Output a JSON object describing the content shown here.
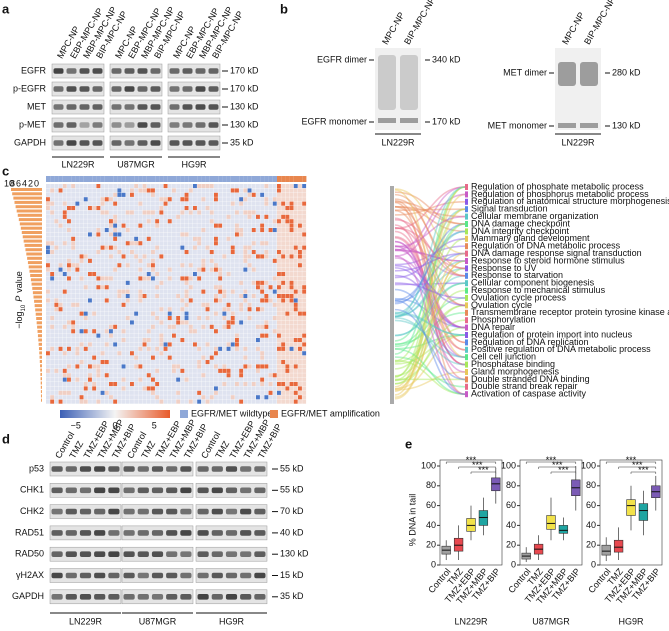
{
  "panels": {
    "a": {
      "label": "a",
      "columns": [
        "MPC-NP",
        "EBP-MPC-NP",
        "MBP-MPC-NP",
        "BIP-MPC-NP",
        "MPC-NP",
        "EBP-MPC-NP",
        "MBP-MPC-NP",
        "BIP-MPC-NP",
        "MPC-NP",
        "EBP-MPC-NP",
        "MBP-MPC-NP",
        "BIP-MPC-NP"
      ],
      "rows": [
        {
          "name": "EGFR",
          "size": "170 kD"
        },
        {
          "name": "p-EGFR",
          "size": "170 kD"
        },
        {
          "name": "MET",
          "size": "130 kD"
        },
        {
          "name": "p-MET",
          "size": "130 kD"
        },
        {
          "name": "GAPDH",
          "size": "35 kD"
        }
      ],
      "groups": [
        "LN229R",
        "U87MGR",
        "HG9R"
      ]
    },
    "b": {
      "label": "b",
      "blots": [
        {
          "columns": [
            "MPC-NP",
            "BIP-MPC-NP"
          ],
          "upper": "EGFR dimer",
          "lower": "EGFR monomer",
          "sizes": [
            "340 kD",
            "170 kD"
          ],
          "group": "LN229R"
        },
        {
          "columns": [
            "MPC-NP",
            "BIP-MPC-NP"
          ],
          "upper": "MET dimer",
          "lower": "MET monomer",
          "sizes": [
            "280 kD",
            "130 kD"
          ],
          "group": "LN229R"
        }
      ]
    },
    "c": {
      "label": "c",
      "ylabel": "−log",
      "ylabel_sub": "10",
      "ylabel_italic": "P",
      "ylabel_end": "value",
      "yticks": [
        "10",
        "8",
        "6",
        "4",
        "2",
        "0"
      ],
      "colorbar": [
        {
          "value": -5,
          "label": "−5"
        },
        0,
        5
      ],
      "legend": [
        "EGFR/MET wildtype",
        "EGFR/MET amplification"
      ],
      "terms": [
        "Regulation of phosphate metabolic process",
        "Regulation of phosphorus metabolic process",
        "Regulation of anatomical structure morphogenesis",
        "Signal transduction",
        "Cellular membrane organization",
        "DNA damage checkpoint",
        "DNA integrity checkpoint",
        "Mammary gland development",
        "Regulation of DNA metabolic process",
        "DNA damage response signal transduction",
        "Response to steroid hormone stimulus",
        "Response to UV",
        "Response to starvation",
        "Cellular component biogenesis",
        "Response to mechanical stimulus",
        "Ovulation cycle process",
        "Ovulation cycle",
        "Transmembrane receptor protein tyrosine kinase activity",
        "Phosphorylation",
        "DNA repair",
        "Regulation of protein import into nucleus",
        "Regulation of DNA replication",
        "Positive regulation of DNA metabolic process",
        "Cell cell junction",
        "Phosphatase binding",
        "Gland morphogenesis",
        "Double stranded DNA binding",
        "Double strand break repair",
        "Activation of caspase activity"
      ]
    },
    "d": {
      "label": "d",
      "columns": [
        "Control",
        "TMZ",
        "TMZ+EBP",
        "TMZ+MBP",
        "TMZ+BIP",
        "Control",
        "TMZ",
        "TMZ+EBP",
        "TMZ+MBP",
        "TMZ+BIP",
        "Control",
        "TMZ",
        "TMZ+EBP",
        "TMZ+MBP",
        "TMZ+BIP"
      ],
      "rows": [
        {
          "name": "p53",
          "size": "55 kD"
        },
        {
          "name": "CHK1",
          "size": "55 kD"
        },
        {
          "name": "CHK2",
          "size": "70 kD"
        },
        {
          "name": "RAD51",
          "size": "40 kD"
        },
        {
          "name": "RAD50",
          "size": "130 kD"
        },
        {
          "name": "γH2AX",
          "size": "15 kD"
        },
        {
          "name": "GAPDH",
          "size": "35 kD"
        }
      ],
      "groups": [
        "LN229R",
        "U87MGR",
        "HG9R"
      ]
    },
    "e": {
      "label": "e",
      "type": "box",
      "ylabel": "% DNA in tail",
      "ylim": [
        0,
        100
      ],
      "yticks": [
        0,
        20,
        40,
        60,
        80,
        100
      ],
      "categories": [
        "Control",
        "TMZ",
        "TMZ+EBP",
        "TMZ+MBP",
        "TMZ+BIP"
      ],
      "colors": [
        "#a0a0a0",
        "#e8484f",
        "#f2e24a",
        "#1fa5a2",
        "#7b5bb5"
      ],
      "charts": [
        {
          "group": "LN229R",
          "sig": [
            "***",
            "***",
            "***"
          ],
          "boxes": [
            {
              "min": 5,
              "q1": 11,
              "median": 15,
              "q3": 19,
              "max": 25
            },
            {
              "min": 5,
              "q1": 14,
              "median": 20,
              "q3": 27,
              "max": 40
            },
            {
              "min": 25,
              "q1": 34,
              "median": 40,
              "q3": 47,
              "max": 60
            },
            {
              "min": 30,
              "q1": 40,
              "median": 48,
              "q3": 55,
              "max": 68
            },
            {
              "min": 62,
              "q1": 75,
              "median": 82,
              "q3": 88,
              "max": 98
            }
          ]
        },
        {
          "group": "U87MGR",
          "sig": [
            "***",
            "***",
            "***"
          ],
          "boxes": [
            {
              "min": 3,
              "q1": 6,
              "median": 9,
              "q3": 12,
              "max": 18
            },
            {
              "min": 5,
              "q1": 11,
              "median": 16,
              "q3": 21,
              "max": 30
            },
            {
              "min": 25,
              "q1": 36,
              "median": 42,
              "q3": 50,
              "max": 68
            },
            {
              "min": 25,
              "q1": 32,
              "median": 35,
              "q3": 40,
              "max": 48
            },
            {
              "min": 55,
              "q1": 70,
              "median": 78,
              "q3": 86,
              "max": 100
            }
          ]
        },
        {
          "group": "HG9R",
          "sig": [
            "***",
            "***",
            "***"
          ],
          "boxes": [
            {
              "min": 4,
              "q1": 10,
              "median": 14,
              "q3": 20,
              "max": 28
            },
            {
              "min": 5,
              "q1": 13,
              "median": 18,
              "q3": 25,
              "max": 38
            },
            {
              "min": 35,
              "q1": 50,
              "median": 60,
              "q3": 66,
              "max": 80
            },
            {
              "min": 30,
              "q1": 45,
              "median": 55,
              "q3": 62,
              "max": 75
            },
            {
              "min": 55,
              "q1": 68,
              "median": 74,
              "q3": 80,
              "max": 90
            }
          ]
        }
      ]
    }
  }
}
